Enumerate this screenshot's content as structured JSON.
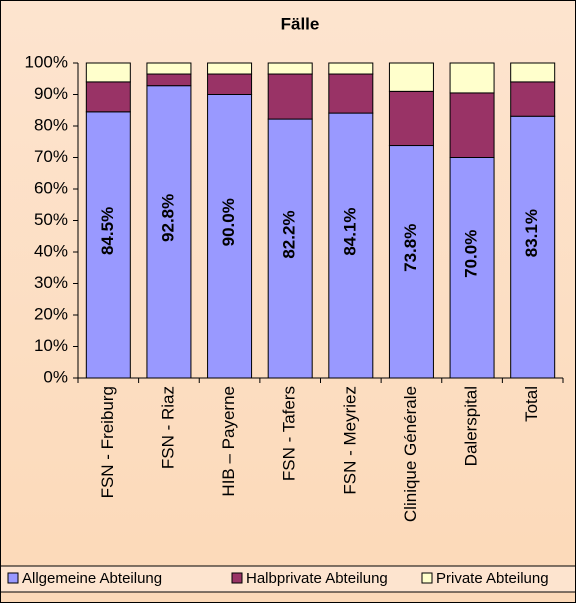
{
  "chart_data": {
    "type": "stacked_bar",
    "title": "Fälle",
    "categories": [
      "FSN - Freiburg",
      "FSN - Riaz",
      "HIB – Payerne",
      "FSN - Tafers",
      "FSN - Meyriez",
      "Clinique Générale",
      "Dalerspital",
      "Total"
    ],
    "series": [
      {
        "name": "Allgemeine Abteilung",
        "color": "#9999ff",
        "values": [
          84.5,
          92.8,
          90.0,
          82.2,
          84.1,
          73.8,
          70.0,
          83.1
        ],
        "value_labels": [
          "84.5%",
          "92.8%",
          "90.0%",
          "82.2%",
          "84.1%",
          "73.8%",
          "70.0%",
          "83.1%"
        ]
      },
      {
        "name": "Halbprivate Abteilung",
        "color": "#993366",
        "values": [
          9.5,
          3.7,
          6.5,
          14.3,
          12.4,
          17.2,
          20.5,
          10.9
        ]
      },
      {
        "name": "Private Abteilung",
        "color": "#ffffcc",
        "values": [
          6.0,
          3.5,
          3.5,
          3.5,
          3.5,
          9.0,
          9.5,
          6.0
        ]
      }
    ],
    "ylim": [
      0,
      100
    ],
    "yticks": [
      {
        "value": 0,
        "label": "0%"
      },
      {
        "value": 10,
        "label": "10%"
      },
      {
        "value": 20,
        "label": "20%"
      },
      {
        "value": 30,
        "label": "30%"
      },
      {
        "value": 40,
        "label": "40%"
      },
      {
        "value": 50,
        "label": "50%"
      },
      {
        "value": 60,
        "label": "60%"
      },
      {
        "value": 70,
        "label": "70%"
      },
      {
        "value": 80,
        "label": "80%"
      },
      {
        "value": 90,
        "label": "90%"
      },
      {
        "value": 100,
        "label": "100%"
      }
    ],
    "legend": "bottom"
  }
}
